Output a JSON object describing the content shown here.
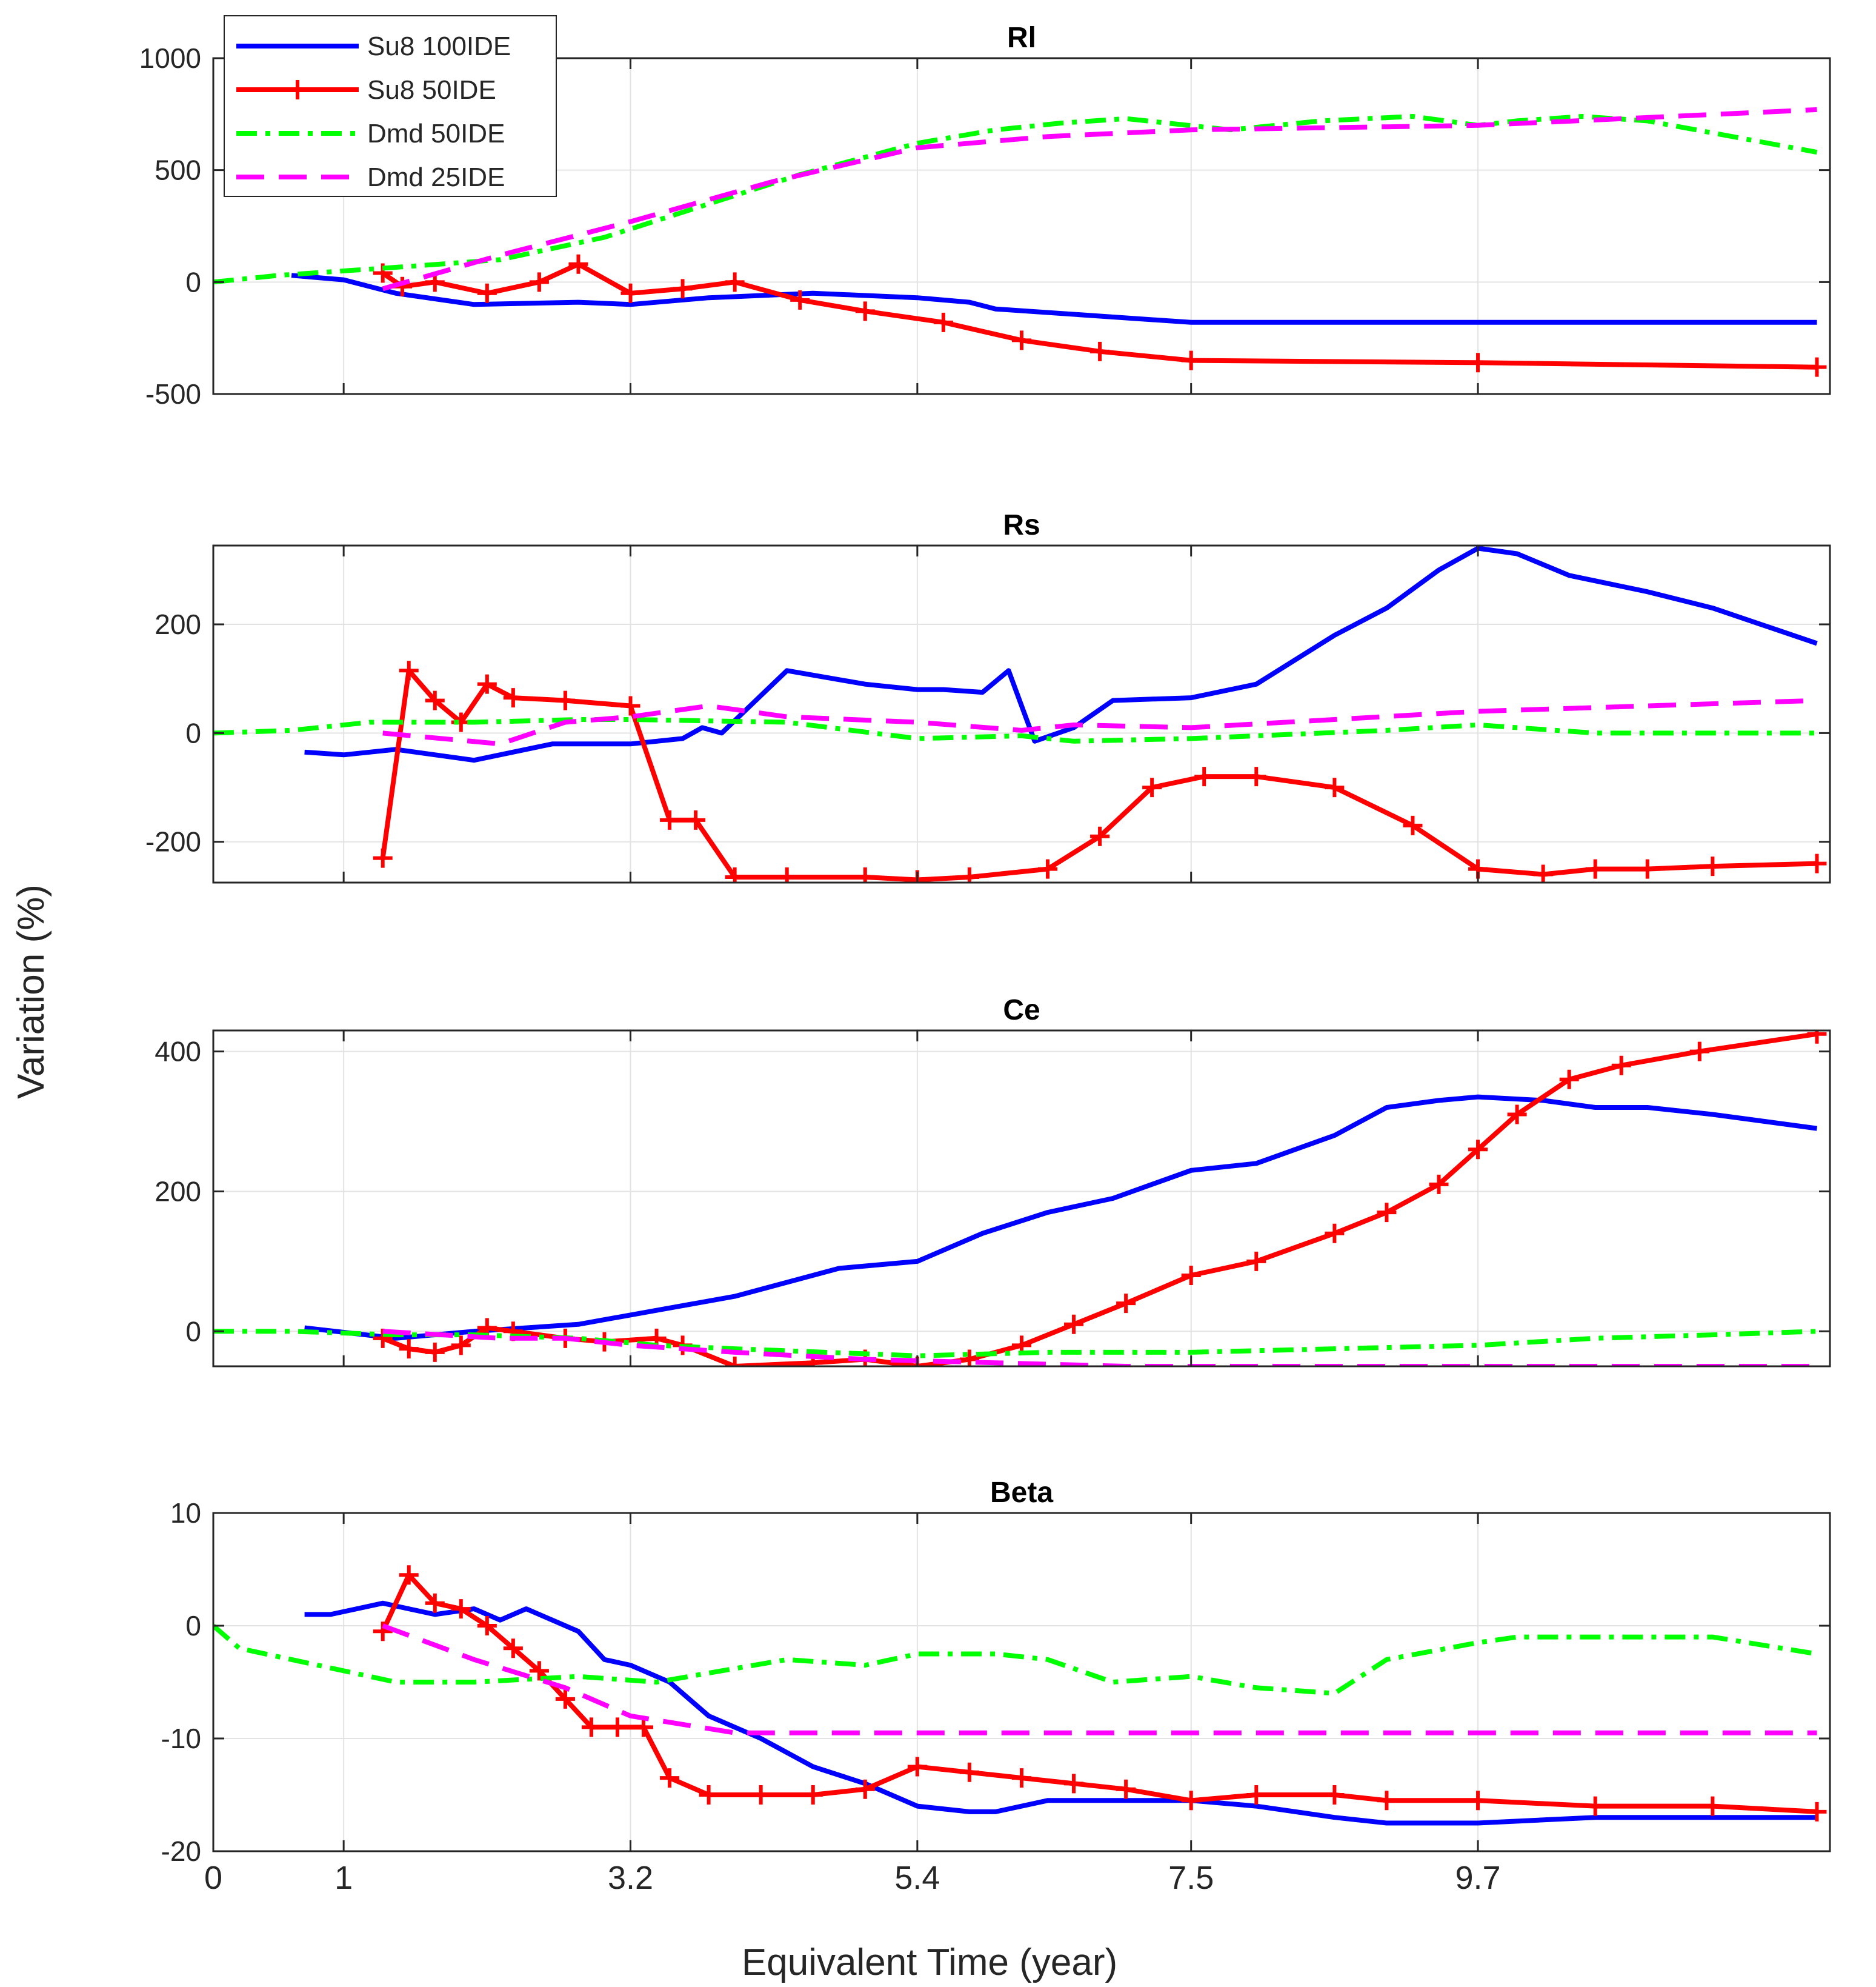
{
  "figure": {
    "xlabel": "Equivalent Time (year)",
    "ylabel": "Variation (%)"
  },
  "legend": {
    "placement": "top-left",
    "entries": [
      {
        "name": "Su8 100IDE",
        "color": "#0000FF",
        "style": "solid",
        "marker": "none"
      },
      {
        "name": "Su8 50IDE",
        "color": "#FF0000",
        "style": "solid",
        "marker": "plus"
      },
      {
        "name": "Dmd 50IDE",
        "color": "#00FF00",
        "style": "dash-dot",
        "marker": "none"
      },
      {
        "name": "Dmd 25IDE",
        "color": "#FF00FF",
        "style": "dashed",
        "marker": "none"
      }
    ]
  },
  "chart_data": [
    {
      "type": "line",
      "title": "Rl",
      "xlim": [
        0,
        12.4
      ],
      "ylim": [
        -500,
        1000
      ],
      "xticks": [
        0,
        1,
        3.2,
        5.4,
        7.5,
        9.7
      ],
      "yticks": [
        -500,
        0,
        500,
        1000
      ],
      "grid": true,
      "series": [
        {
          "name": "Su8 100IDE",
          "x": [
            0.6,
            1.0,
            1.4,
            2.0,
            2.8,
            3.2,
            3.8,
            4.6,
            5.4,
            5.8,
            6.0,
            7.5,
            9.7,
            12.3
          ],
          "y": [
            30,
            10,
            -50,
            -100,
            -90,
            -100,
            -70,
            -50,
            -70,
            -90,
            -120,
            -180,
            -180,
            -180
          ]
        },
        {
          "name": "Su8 50IDE",
          "x": [
            1.3,
            1.45,
            1.7,
            2.1,
            2.5,
            2.8,
            3.2,
            3.6,
            4.0,
            4.5,
            5.0,
            5.6,
            6.2,
            6.8,
            7.5,
            9.7,
            12.3
          ],
          "y": [
            40,
            -20,
            0,
            -50,
            0,
            80,
            -50,
            -30,
            0,
            -80,
            -130,
            -180,
            -260,
            -310,
            -350,
            -360,
            -380
          ]
        },
        {
          "name": "Dmd 50IDE",
          "x": [
            0,
            0.5,
            1.5,
            2.2,
            3.0,
            4.5,
            5.4,
            6.0,
            6.5,
            7.0,
            7.8,
            8.5,
            9.2,
            9.7,
            10.0,
            10.5,
            11.0,
            12.3
          ],
          "y": [
            0,
            30,
            70,
            100,
            200,
            480,
            620,
            680,
            710,
            730,
            680,
            720,
            740,
            700,
            720,
            740,
            720,
            580
          ]
        },
        {
          "name": "Dmd 25IDE",
          "x": [
            1.3,
            2.2,
            3.2,
            4.3,
            5.4,
            6.4,
            7.5,
            9.7,
            12.3
          ],
          "y": [
            -30,
            120,
            270,
            450,
            600,
            650,
            680,
            700,
            770
          ]
        }
      ]
    },
    {
      "type": "line",
      "title": "Rs",
      "xlim": [
        0,
        12.4
      ],
      "ylim": [
        -275,
        345
      ],
      "xticks": [
        0,
        1,
        3.2,
        5.4,
        7.5,
        9.7
      ],
      "yticks": [
        -200,
        0,
        200
      ],
      "grid": true,
      "series": [
        {
          "name": "Su8 100IDE",
          "x": [
            0.7,
            1.0,
            1.4,
            2.0,
            2.6,
            3.2,
            3.6,
            3.75,
            3.9,
            4.4,
            5.0,
            5.4,
            5.6,
            5.9,
            6.1,
            6.3,
            6.6,
            6.9,
            7.5,
            8.0,
            8.6,
            9.0,
            9.4,
            9.7,
            10.0,
            10.4,
            11.0,
            11.5,
            12.3
          ],
          "y": [
            -35,
            -40,
            -30,
            -50,
            -20,
            -20,
            -10,
            10,
            0,
            115,
            90,
            80,
            80,
            75,
            115,
            -15,
            10,
            60,
            65,
            90,
            180,
            230,
            300,
            340,
            330,
            290,
            260,
            230,
            165
          ]
        },
        {
          "name": "Su8 50IDE",
          "x": [
            1.3,
            1.5,
            1.7,
            1.9,
            2.1,
            2.3,
            2.7,
            3.2,
            3.5,
            3.7,
            4.0,
            4.4,
            5.0,
            5.4,
            5.8,
            6.4,
            6.8,
            7.2,
            7.6,
            8.0,
            8.6,
            9.2,
            9.7,
            10.2,
            10.6,
            11.0,
            11.5,
            12.3
          ],
          "y": [
            -230,
            115,
            60,
            20,
            90,
            65,
            60,
            50,
            -160,
            -160,
            -265,
            -265,
            -265,
            -270,
            -265,
            -250,
            -190,
            -100,
            -80,
            -80,
            -100,
            -170,
            -250,
            -260,
            -250,
            -250,
            -245,
            -240
          ]
        },
        {
          "name": "Dmd 50IDE",
          "x": [
            0,
            0.6,
            1.2,
            2.0,
            2.8,
            3.2,
            4.4,
            5.4,
            6.2,
            6.6,
            7.5,
            9.0,
            9.7,
            10.6,
            11.5,
            12.3
          ],
          "y": [
            0,
            5,
            20,
            20,
            25,
            25,
            20,
            -10,
            -5,
            -15,
            -10,
            5,
            15,
            0,
            0,
            0
          ]
        },
        {
          "name": "Dmd 25IDE",
          "x": [
            1.3,
            2.2,
            2.7,
            3.2,
            3.8,
            4.4,
            5.4,
            6.2,
            6.6,
            7.5,
            9.7,
            12.3
          ],
          "y": [
            0,
            -20,
            20,
            30,
            50,
            30,
            20,
            5,
            15,
            10,
            40,
            60
          ]
        }
      ]
    },
    {
      "type": "line",
      "title": "Ce",
      "xlim": [
        0,
        12.4
      ],
      "ylim": [
        -50,
        430
      ],
      "xticks": [
        0,
        1,
        3.2,
        5.4,
        7.5,
        9.7
      ],
      "yticks": [
        0,
        200,
        400
      ],
      "grid": true,
      "series": [
        {
          "name": "Su8 100IDE",
          "x": [
            0.7,
            1.4,
            2.0,
            2.8,
            3.4,
            4.0,
            4.4,
            4.8,
            5.4,
            5.9,
            6.4,
            6.9,
            7.5,
            8.0,
            8.6,
            9.0,
            9.4,
            9.7,
            10.2,
            10.6,
            11.0,
            11.5,
            12.3
          ],
          "y": [
            5,
            -10,
            0,
            10,
            30,
            50,
            70,
            90,
            100,
            140,
            170,
            190,
            230,
            240,
            280,
            320,
            330,
            335,
            330,
            320,
            320,
            310,
            290
          ]
        },
        {
          "name": "Su8 50IDE",
          "x": [
            1.3,
            1.5,
            1.7,
            1.9,
            2.1,
            2.3,
            2.7,
            3.0,
            3.4,
            3.6,
            4.0,
            4.6,
            5.0,
            5.4,
            5.8,
            6.2,
            6.6,
            7.0,
            7.5,
            8.0,
            8.6,
            9.0,
            9.4,
            9.7,
            10.0,
            10.4,
            10.8,
            11.4,
            12.3
          ],
          "y": [
            -10,
            -25,
            -30,
            -20,
            5,
            0,
            -10,
            -15,
            -10,
            -20,
            -50,
            -45,
            -40,
            -50,
            -40,
            -20,
            10,
            40,
            80,
            100,
            140,
            170,
            210,
            260,
            310,
            360,
            380,
            400,
            425
          ]
        },
        {
          "name": "Dmd 50IDE",
          "x": [
            0,
            0.6,
            1.4,
            2.0,
            2.8,
            3.4,
            4.0,
            5.4,
            6.4,
            7.5,
            8.6,
            9.7,
            10.6,
            11.5,
            12.3
          ],
          "y": [
            0,
            0,
            -5,
            -5,
            -10,
            -20,
            -25,
            -35,
            -30,
            -30,
            -25,
            -20,
            -10,
            -5,
            0
          ]
        },
        {
          "name": "Dmd 25IDE",
          "x": [
            1.3,
            2.2,
            2.7,
            3.2,
            4.0,
            5.0,
            6.0,
            7.0,
            8.0,
            9.7,
            12.3
          ],
          "y": [
            0,
            -10,
            -10,
            -20,
            -30,
            -40,
            -45,
            -50,
            -50,
            -50,
            -50
          ]
        }
      ]
    },
    {
      "type": "line",
      "title": "Beta",
      "xlim": [
        0,
        12.4
      ],
      "ylim": [
        -20,
        10
      ],
      "xticks": [
        0,
        1,
        3.2,
        5.4,
        7.5,
        9.7
      ],
      "yticks": [
        -20,
        -10,
        0,
        10
      ],
      "grid": true,
      "series": [
        {
          "name": "Su8 100IDE",
          "x": [
            0.7,
            0.9,
            1.1,
            1.3,
            1.5,
            1.7,
            2.0,
            2.2,
            2.4,
            2.6,
            2.8,
            3.0,
            3.2,
            3.5,
            3.8,
            4.2,
            4.6,
            5.0,
            5.4,
            5.8,
            6.0,
            6.4,
            6.9,
            7.5,
            8.0,
            8.6,
            9.0,
            9.7,
            10.6,
            11.5,
            12.3
          ],
          "y": [
            1,
            1,
            1.5,
            2,
            1.5,
            1,
            1.5,
            0.5,
            1.5,
            0.5,
            -0.5,
            -3,
            -3.5,
            -5,
            -8,
            -10,
            -12.5,
            -14,
            -16,
            -16.5,
            -16.5,
            -15.5,
            -15.5,
            -15.5,
            -16,
            -17,
            -17.5,
            -17.5,
            -17,
            -17,
            -17
          ]
        },
        {
          "name": "Su8 50IDE",
          "x": [
            1.3,
            1.5,
            1.7,
            1.9,
            2.1,
            2.3,
            2.5,
            2.7,
            2.9,
            3.1,
            3.3,
            3.5,
            3.8,
            4.2,
            4.6,
            5.0,
            5.4,
            5.8,
            6.2,
            6.6,
            7.0,
            7.5,
            8.0,
            8.6,
            9.0,
            9.7,
            10.6,
            11.5,
            12.3
          ],
          "y": [
            -0.5,
            4.5,
            2,
            1.5,
            0,
            -2,
            -4,
            -6.5,
            -9,
            -9,
            -9,
            -13.5,
            -15,
            -15,
            -15,
            -14.5,
            -12.5,
            -13,
            -13.5,
            -14,
            -14.5,
            -15.5,
            -15,
            -15,
            -15.5,
            -15.5,
            -16,
            -16,
            -16.5
          ]
        },
        {
          "name": "Dmd 50IDE",
          "x": [
            0,
            0.2,
            0.6,
            1.0,
            1.4,
            2.0,
            2.8,
            3.4,
            4.4,
            5.0,
            5.4,
            6.0,
            6.4,
            6.9,
            7.5,
            8.0,
            8.6,
            9.0,
            9.7,
            10.0,
            10.6,
            11.5,
            12.3
          ],
          "y": [
            0,
            -2,
            -3,
            -4,
            -5,
            -5,
            -4.5,
            -5,
            -3,
            -3.5,
            -2.5,
            -2.5,
            -3,
            -5,
            -4.5,
            -5.5,
            -6,
            -3,
            -1.5,
            -1,
            -1,
            -1,
            -2.5
          ]
        },
        {
          "name": "Dmd 25IDE",
          "x": [
            1.3,
            2.0,
            2.7,
            3.2,
            4.0,
            5.0,
            6.0,
            7.0,
            8.0,
            9.7,
            12.3
          ],
          "y": [
            0,
            -3,
            -5.5,
            -8,
            -9.5,
            -9.5,
            -9.5,
            -9.5,
            -9.5,
            -9.5,
            -9.5
          ]
        }
      ]
    }
  ]
}
